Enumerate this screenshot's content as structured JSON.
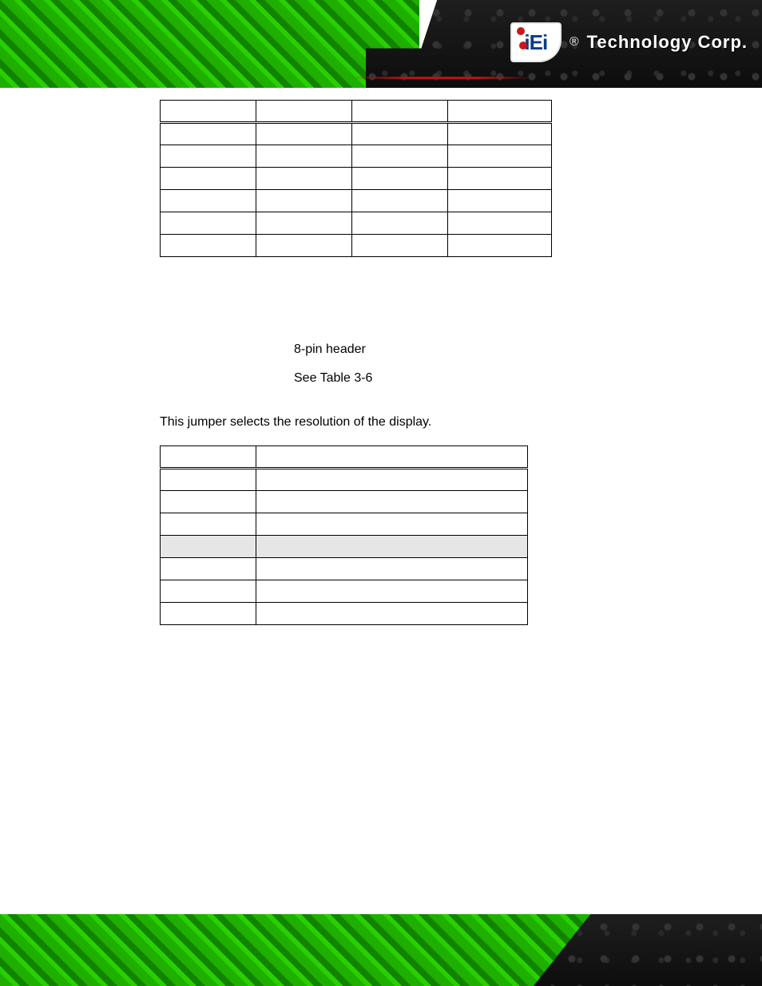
{
  "brand": {
    "logo_text": "iEi",
    "registered": "®",
    "name": "Technology Corp."
  },
  "colors": {
    "highlight_row": "#e6e6e6"
  },
  "table1": {
    "col_count": 4,
    "header": [
      "",
      "",
      "",
      ""
    ],
    "rows": [
      [
        "",
        "",
        "",
        ""
      ],
      [
        "",
        "",
        "",
        ""
      ],
      [
        "",
        "",
        "",
        ""
      ],
      [
        "",
        "",
        "",
        ""
      ],
      [
        "",
        "",
        "",
        ""
      ],
      [
        "",
        "",
        "",
        ""
      ]
    ]
  },
  "spec": {
    "line1": "8-pin header",
    "line2": "See Table 3-6"
  },
  "paragraph": "This jumper selects the resolution of the display.",
  "table2": {
    "col_count": 2,
    "header": [
      "",
      ""
    ],
    "highlight_index": 3,
    "rows": [
      [
        "",
        ""
      ],
      [
        "",
        ""
      ],
      [
        "",
        ""
      ],
      [
        "",
        ""
      ],
      [
        "",
        ""
      ],
      [
        "",
        ""
      ],
      [
        "",
        ""
      ]
    ]
  }
}
